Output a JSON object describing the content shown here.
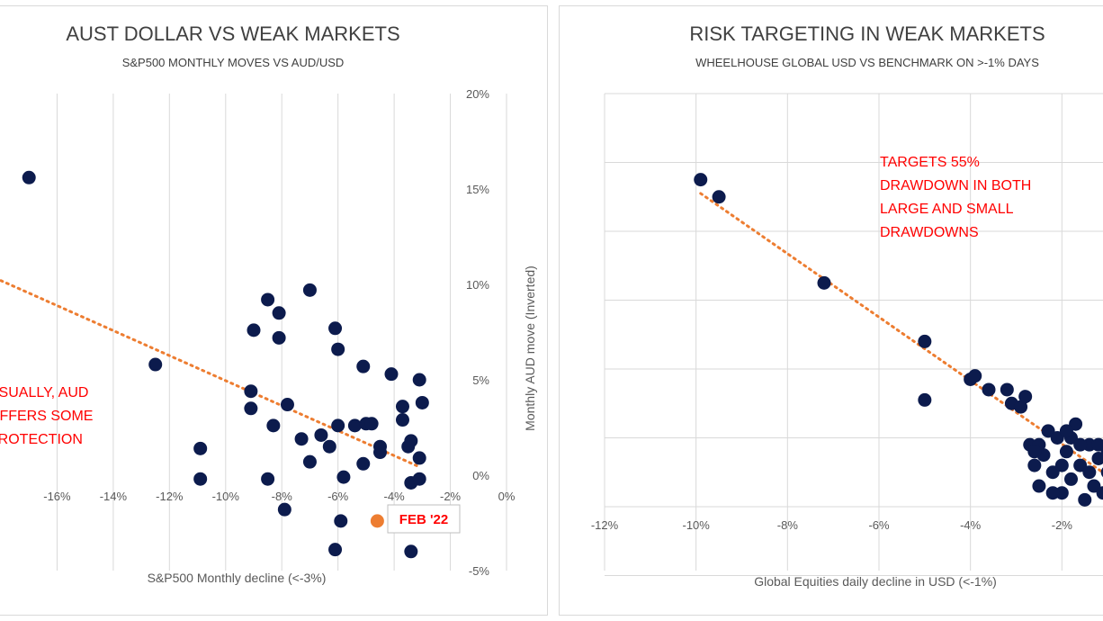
{
  "colors": {
    "point": "#0c1b4d",
    "trend": "#ed7d31",
    "highlight": "#ed7d31",
    "annotation": "#ff0000",
    "grid": "#d9d9d9"
  },
  "chart_data": [
    {
      "type": "scatter",
      "title": "AUST DOLLAR VS WEAK MARKETS",
      "subtitle": "S&P500 MONTHLY MOVES VS AUD/USD",
      "xlabel": "S&P500 Monthly decline (<-3%)",
      "ylabel": "Monthly AUD move (Inverted)",
      "xlim": [
        -18,
        0
      ],
      "ylim": [
        -5,
        20
      ],
      "x_ticks": [
        "-16%",
        "-14%",
        "-12%",
        "-10%",
        "-8%",
        "-6%",
        "-4%",
        "-2%",
        "0%"
      ],
      "y_ticks": [
        "20%",
        "15%",
        "10%",
        "5%",
        "0%",
        "-5%"
      ],
      "grid": "vertical",
      "trendline": {
        "style": "dotted",
        "x": [
          -18,
          -3.2
        ],
        "y": [
          10.2,
          0.5
        ]
      },
      "points": [
        {
          "x": -17.0,
          "y": 15.6
        },
        {
          "x": -12.5,
          "y": 5.8
        },
        {
          "x": -10.9,
          "y": 1.4
        },
        {
          "x": -10.9,
          "y": -0.2
        },
        {
          "x": -9.1,
          "y": 4.4
        },
        {
          "x": -9.0,
          "y": 7.6
        },
        {
          "x": -9.1,
          "y": 3.5
        },
        {
          "x": -8.5,
          "y": 9.2
        },
        {
          "x": -8.1,
          "y": 8.5
        },
        {
          "x": -8.1,
          "y": 7.2
        },
        {
          "x": -8.3,
          "y": 2.6
        },
        {
          "x": -7.8,
          "y": 3.7
        },
        {
          "x": -7.9,
          "y": -1.8
        },
        {
          "x": -8.5,
          "y": -0.2
        },
        {
          "x": -7.3,
          "y": 1.9
        },
        {
          "x": -7.0,
          "y": 9.7
        },
        {
          "x": -6.6,
          "y": 2.1
        },
        {
          "x": -7.0,
          "y": 0.7
        },
        {
          "x": -6.3,
          "y": 1.5
        },
        {
          "x": -6.1,
          "y": 7.7
        },
        {
          "x": -6.0,
          "y": 6.6
        },
        {
          "x": -6.0,
          "y": 2.6
        },
        {
          "x": -5.8,
          "y": -0.1
        },
        {
          "x": -5.9,
          "y": -2.4
        },
        {
          "x": -6.1,
          "y": -3.9
        },
        {
          "x": -5.4,
          "y": 2.6
        },
        {
          "x": -5.1,
          "y": 5.7
        },
        {
          "x": -5.0,
          "y": 2.7
        },
        {
          "x": -4.8,
          "y": 2.7
        },
        {
          "x": -5.1,
          "y": 0.6
        },
        {
          "x": -4.5,
          "y": 1.2
        },
        {
          "x": -4.5,
          "y": 1.5
        },
        {
          "x": -4.1,
          "y": 5.3
        },
        {
          "x": -3.7,
          "y": 3.6
        },
        {
          "x": -3.7,
          "y": 2.9
        },
        {
          "x": -3.5,
          "y": 1.5
        },
        {
          "x": -3.4,
          "y": 1.8
        },
        {
          "x": -3.1,
          "y": 5.0
        },
        {
          "x": -3.0,
          "y": 3.8
        },
        {
          "x": -3.1,
          "y": 0.9
        },
        {
          "x": -3.4,
          "y": -0.4
        },
        {
          "x": -3.1,
          "y": -0.2
        },
        {
          "x": -3.4,
          "y": -4.0
        }
      ],
      "highlight_point": {
        "x": -4.6,
        "y": -2.4,
        "label": "FEB '22"
      },
      "annotation_lines": [
        "USUALLY, AUD",
        "OFFERS SOME",
        "PROTECTION"
      ]
    },
    {
      "type": "scatter",
      "title": "RISK TARGETING IN WEAK MARKETS",
      "subtitle": "WHEELHOUSE GLOBAL USD VS BENCHMARK ON >-1% DAYS",
      "xlabel": "Global Equities daily decline in USD (<-1%)",
      "ylabel": "",
      "xlim": [
        -12,
        0
      ],
      "ylim": [
        0,
        6
      ],
      "x_ticks": [
        "-12%",
        "-10%",
        "-8%",
        "-6%",
        "-4%",
        "-2%"
      ],
      "grid": "both",
      "trendline": {
        "style": "dotted",
        "x": [
          -9.9,
          -1.0
        ],
        "y": [
          4.55,
          0.45
        ]
      },
      "points": [
        {
          "x": -9.9,
          "y": 4.75
        },
        {
          "x": -9.5,
          "y": 4.5
        },
        {
          "x": -7.2,
          "y": 3.25
        },
        {
          "x": -5.0,
          "y": 2.4
        },
        {
          "x": -5.0,
          "y": 1.55
        },
        {
          "x": -4.0,
          "y": 1.85
        },
        {
          "x": -3.9,
          "y": 1.9
        },
        {
          "x": -3.6,
          "y": 1.7
        },
        {
          "x": -3.2,
          "y": 1.7
        },
        {
          "x": -3.1,
          "y": 1.5
        },
        {
          "x": -2.9,
          "y": 1.45
        },
        {
          "x": -2.8,
          "y": 1.6
        },
        {
          "x": -2.7,
          "y": 0.9
        },
        {
          "x": -2.6,
          "y": 0.6
        },
        {
          "x": -2.5,
          "y": 0.3
        },
        {
          "x": -2.4,
          "y": 0.75
        },
        {
          "x": -2.3,
          "y": 1.1
        },
        {
          "x": -2.2,
          "y": 0.5
        },
        {
          "x": -2.1,
          "y": 1.0
        },
        {
          "x": -2.0,
          "y": 0.2
        },
        {
          "x": -1.9,
          "y": 0.8
        },
        {
          "x": -1.8,
          "y": 0.4
        },
        {
          "x": -1.7,
          "y": 1.2
        },
        {
          "x": -1.6,
          "y": 0.6
        },
        {
          "x": -1.5,
          "y": 0.1
        },
        {
          "x": -1.4,
          "y": 0.9
        },
        {
          "x": -1.3,
          "y": 0.3
        },
        {
          "x": -1.2,
          "y": 0.7
        },
        {
          "x": -1.1,
          "y": 0.2
        },
        {
          "x": -1.0,
          "y": 0.5
        },
        {
          "x": -0.9,
          "y": 0.1
        },
        {
          "x": -2.5,
          "y": 0.9
        },
        {
          "x": -1.8,
          "y": 1.0
        },
        {
          "x": -1.4,
          "y": 0.5
        },
        {
          "x": -2.2,
          "y": 0.2
        },
        {
          "x": -1.6,
          "y": 0.9
        },
        {
          "x": -2.0,
          "y": 0.6
        },
        {
          "x": -1.2,
          "y": 0.9
        },
        {
          "x": -0.9,
          "y": 0.6
        },
        {
          "x": -2.6,
          "y": 0.8
        },
        {
          "x": -1.9,
          "y": 1.1
        },
        {
          "x": -1.0,
          "y": 0.8
        }
      ],
      "annotation_lines": [
        "TARGETS 55%",
        "DRAWDOWN IN BOTH",
        "LARGE AND SMALL",
        "DRAWDOWNS"
      ]
    }
  ]
}
